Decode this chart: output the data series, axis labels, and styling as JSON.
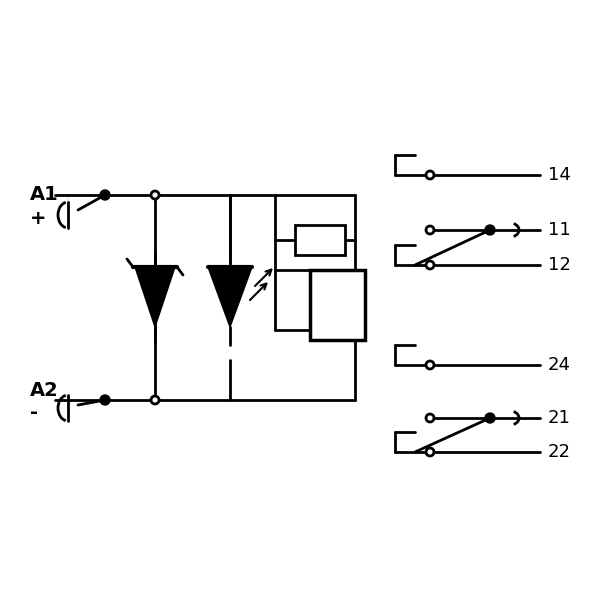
{
  "bg_color": "#ffffff",
  "line_color": "#000000",
  "line_width": 2.0,
  "fig_size": [
    6.0,
    6.0
  ],
  "dpi": 100
}
